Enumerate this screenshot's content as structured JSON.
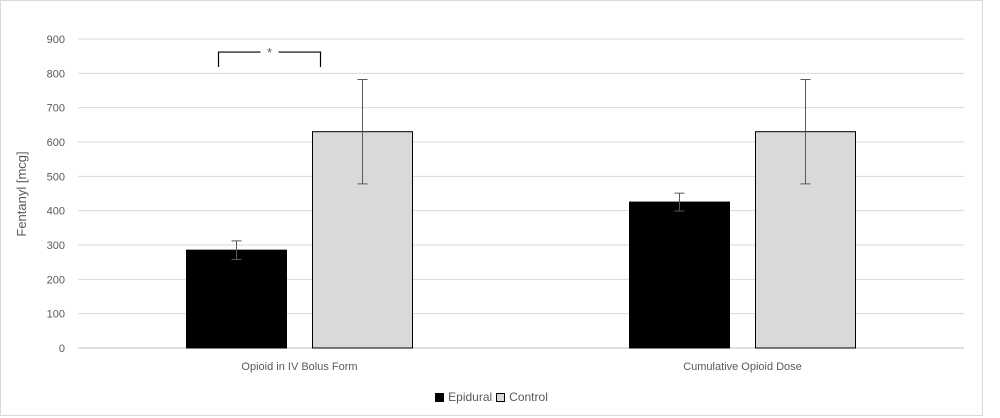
{
  "chart_data": {
    "type": "bar",
    "title": "",
    "xlabel": "",
    "ylabel": "Fentanyl [mcg]",
    "ylim": [
      0,
      900
    ],
    "yticks": [
      0,
      100,
      200,
      300,
      400,
      500,
      600,
      700,
      800,
      900
    ],
    "grid": true,
    "legend_position": "bottom",
    "categories": [
      "Opioid in IV Bolus Form",
      "Cumulative Opioid Dose"
    ],
    "series": [
      {
        "name": "Epidural",
        "color": "#000000",
        "values": [
          285,
          425
        ],
        "error": [
          27,
          26
        ]
      },
      {
        "name": "Control",
        "color": "#d9d9d9",
        "values": [
          630,
          630
        ],
        "error": [
          152,
          152
        ]
      }
    ],
    "annotations": [
      {
        "label": "*",
        "category": "Opioid in IV Bolus Form",
        "between": [
          "Epidural",
          "Control"
        ],
        "level": 862
      }
    ]
  }
}
